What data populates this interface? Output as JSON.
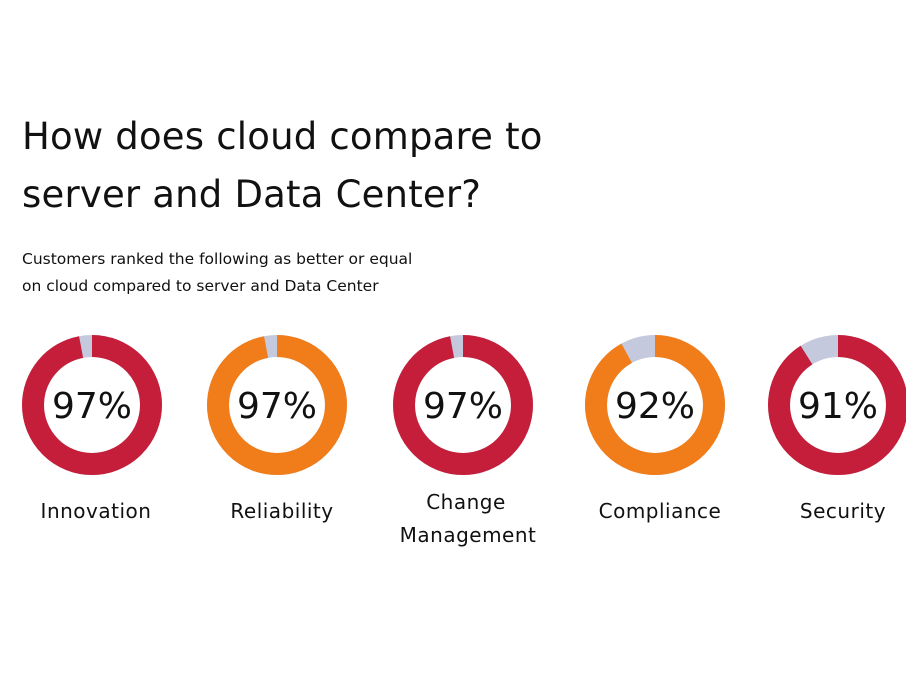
{
  "title": {
    "line1": "How does cloud compare to",
    "line2": "server and Data Center?"
  },
  "subtitle": {
    "line1": "Customers ranked the following as better or equal",
    "line2": "on cloud compared to server and Data Center"
  },
  "colors": {
    "red": "#c41e3a",
    "orange": "#f07d1a",
    "remainder": "#c5c9dd",
    "text": "#111111"
  },
  "chart_data": {
    "type": "pie",
    "title": "How does cloud compare to server and Data Center?",
    "subtitle": "Customers ranked the following as better or equal on cloud compared to server and Data Center",
    "unit": "%",
    "categories": [
      "Innovation",
      "Reliability",
      "Change Management",
      "Compliance",
      "Security"
    ],
    "values": [
      97,
      97,
      97,
      92,
      91
    ],
    "items": [
      {
        "label": [
          "Innovation"
        ],
        "value": 97,
        "display": "97%",
        "color": "#c41e3a"
      },
      {
        "label": [
          "Reliability"
        ],
        "value": 97,
        "display": "97%",
        "color": "#f07d1a"
      },
      {
        "label": [
          "Change",
          "Management"
        ],
        "value": 97,
        "display": "97%",
        "color": "#c41e3a"
      },
      {
        "label": [
          "Compliance"
        ],
        "value": 92,
        "display": "92%",
        "color": "#f07d1a"
      },
      {
        "label": [
          "Security"
        ],
        "value": 91,
        "display": "91%",
        "color": "#c41e3a"
      }
    ]
  }
}
